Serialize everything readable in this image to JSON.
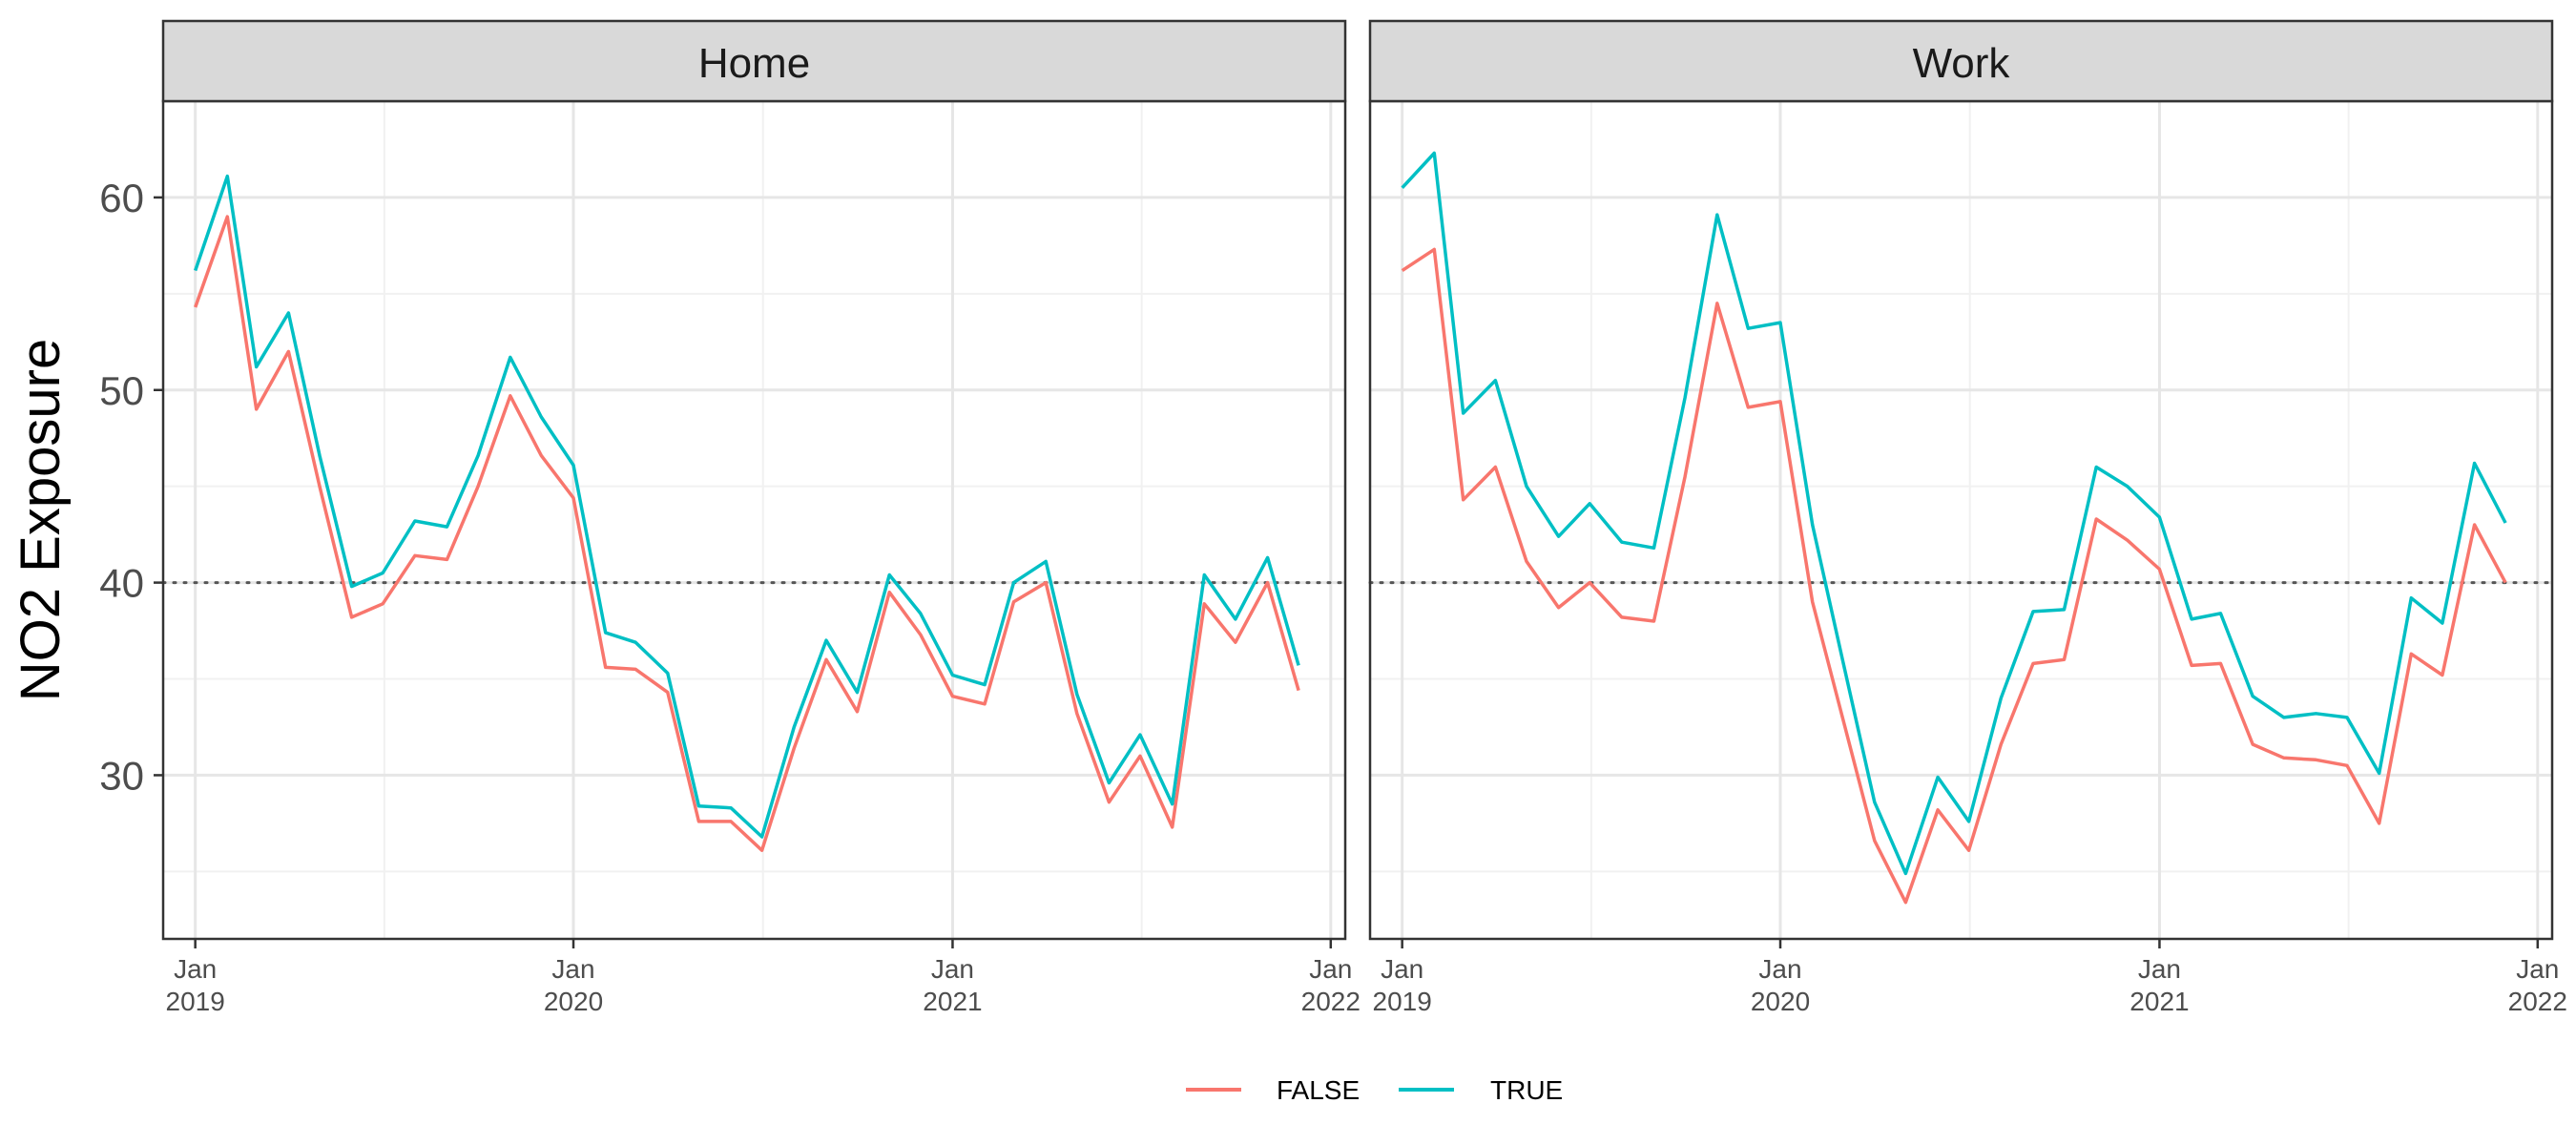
{
  "chart_data": {
    "type": "line",
    "ylabel": "NO2 Exposure",
    "xlabel": "",
    "reference_line": {
      "y": 40,
      "style": "dotted"
    },
    "y_ticks": [
      30,
      40,
      50,
      60
    ],
    "ylim": [
      21.5,
      65
    ],
    "xlim": [
      "2018-12-01",
      "2022-01-15"
    ],
    "x_ticks": [
      {
        "date": "2019-01-01",
        "line1": "Jan",
        "line2": "2019"
      },
      {
        "date": "2020-01-01",
        "line1": "Jan",
        "line2": "2020"
      },
      {
        "date": "2021-01-01",
        "line1": "Jan",
        "line2": "2021"
      },
      {
        "date": "2022-01-01",
        "line1": "Jan",
        "line2": "2022"
      }
    ],
    "legend": {
      "position": "bottom",
      "entries": [
        {
          "label": "FALSE",
          "color": "#F8766D"
        },
        {
          "label": "TRUE",
          "color": "#00BFC4"
        }
      ]
    },
    "dates": [
      "2019-01-01",
      "2019-02-01",
      "2019-03-01",
      "2019-04-01",
      "2019-05-01",
      "2019-06-01",
      "2019-07-01",
      "2019-08-01",
      "2019-09-01",
      "2019-10-01",
      "2019-11-01",
      "2019-12-01",
      "2020-01-01",
      "2020-02-01",
      "2020-03-01",
      "2020-04-01",
      "2020-05-01",
      "2020-06-01",
      "2020-07-01",
      "2020-08-01",
      "2020-09-01",
      "2020-10-01",
      "2020-11-01",
      "2020-12-01",
      "2021-01-01",
      "2021-02-01",
      "2021-03-01",
      "2021-04-01",
      "2021-05-01",
      "2021-06-01",
      "2021-07-01",
      "2021-08-01",
      "2021-09-01",
      "2021-10-01",
      "2021-11-01",
      "2021-12-01"
    ],
    "panels": [
      {
        "title": "Home",
        "series": [
          {
            "name": "FALSE",
            "color": "#F8766D",
            "values": [
              54.3,
              59.0,
              49.0,
              52.0,
              45.0,
              38.2,
              38.9,
              41.4,
              41.2,
              45.0,
              49.7,
              46.6,
              44.4,
              35.6,
              35.5,
              34.3,
              27.6,
              27.6,
              26.1,
              31.4,
              36.0,
              33.3,
              39.5,
              37.3,
              34.1,
              33.7,
              39.0,
              40.0,
              33.2,
              28.6,
              31.0,
              27.3,
              38.9,
              36.9,
              40.0,
              34.4
            ]
          },
          {
            "name": "TRUE",
            "color": "#00BFC4",
            "values": [
              56.2,
              61.1,
              51.2,
              54.0,
              46.6,
              39.8,
              40.5,
              43.2,
              42.9,
              46.6,
              51.7,
              48.6,
              46.1,
              37.4,
              36.9,
              35.3,
              28.4,
              28.3,
              26.8,
              32.5,
              37.0,
              34.3,
              40.4,
              38.4,
              35.2,
              34.7,
              40.0,
              41.1,
              34.2,
              29.6,
              32.1,
              28.5,
              40.4,
              38.1,
              41.3,
              35.7
            ]
          }
        ]
      },
      {
        "title": "Work",
        "series": [
          {
            "name": "FALSE",
            "color": "#F8766D",
            "values": [
              56.2,
              57.3,
              44.3,
              46.0,
              41.1,
              38.7,
              40.0,
              38.2,
              38.0,
              45.5,
              54.5,
              49.1,
              49.4,
              39.0,
              33.0,
              26.6,
              23.4,
              28.2,
              26.1,
              31.6,
              35.8,
              36.0,
              43.3,
              42.2,
              40.7,
              35.7,
              35.8,
              31.6,
              30.9,
              30.8,
              30.5,
              27.5,
              36.3,
              35.2,
              43.0,
              40.0
            ]
          },
          {
            "name": "TRUE",
            "color": "#00BFC4",
            "values": [
              60.5,
              62.3,
              48.8,
              50.5,
              45.0,
              42.4,
              44.1,
              42.1,
              41.8,
              49.6,
              59.1,
              53.2,
              53.5,
              43.0,
              36.0,
              28.6,
              24.9,
              29.9,
              27.6,
              34.0,
              38.5,
              38.6,
              46.0,
              45.0,
              43.4,
              38.1,
              38.4,
              34.1,
              33.0,
              33.2,
              33.0,
              30.1,
              39.2,
              37.9,
              46.2,
              43.1
            ]
          }
        ]
      }
    ]
  }
}
